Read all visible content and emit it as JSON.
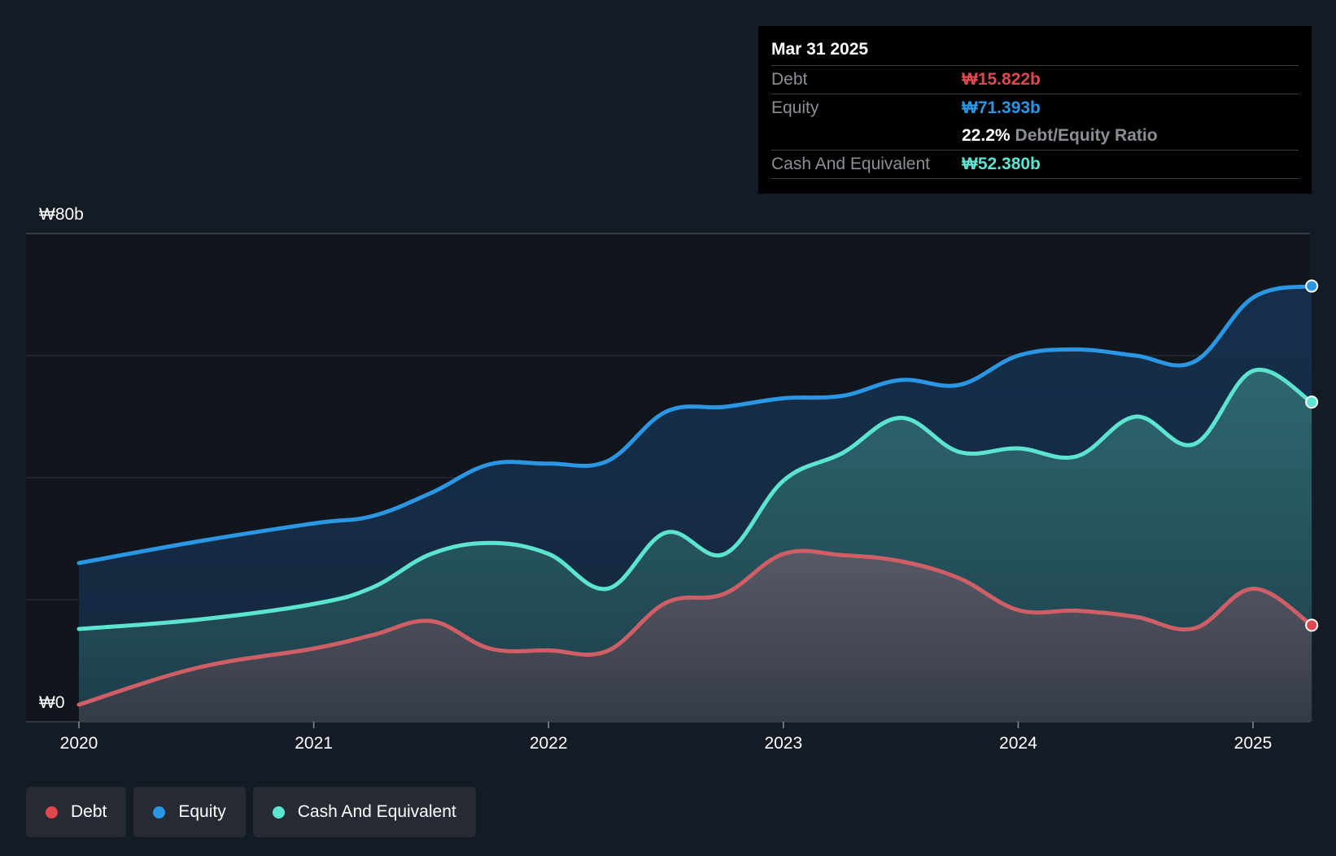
{
  "chart_data": {
    "type": "area",
    "title": "",
    "xlabel": "",
    "ylabel": "",
    "ylim": [
      0,
      80
    ],
    "y_tick_labels": {
      "top": "₩80b",
      "bottom": "₩0"
    },
    "x_tick_labels": [
      "2020",
      "2021",
      "2022",
      "2023",
      "2024",
      "2025"
    ],
    "x_tick_values": [
      2020,
      2021,
      2022,
      2023,
      2024,
      2025
    ],
    "xlim": [
      2019.78,
      2025.25
    ],
    "grid": true,
    "series": [
      {
        "name": "Equity",
        "color": "#2b96e3",
        "x": [
          2020.0,
          2020.5,
          2021.0,
          2021.25,
          2021.5,
          2021.75,
          2022.0,
          2022.25,
          2022.5,
          2022.75,
          2023.0,
          2023.25,
          2023.5,
          2023.75,
          2024.0,
          2024.25,
          2024.5,
          2024.75,
          2025.0,
          2025.25
        ],
        "values": [
          26.0,
          29.5,
          32.5,
          33.7,
          37.5,
          42.2,
          42.3,
          42.7,
          50.8,
          51.6,
          53.0,
          53.4,
          56.0,
          55.2,
          60.0,
          61.0,
          60.0,
          59.0,
          69.5,
          71.393
        ]
      },
      {
        "name": "Cash And Equivalent",
        "color": "#5de4d0",
        "x": [
          2020.0,
          2020.5,
          2021.0,
          2021.25,
          2021.5,
          2021.75,
          2022.0,
          2022.25,
          2022.5,
          2022.75,
          2023.0,
          2023.25,
          2023.5,
          2023.75,
          2024.0,
          2024.25,
          2024.5,
          2024.75,
          2025.0,
          2025.25
        ],
        "values": [
          15.2,
          16.7,
          19.3,
          22.0,
          27.5,
          29.3,
          27.5,
          21.8,
          31.0,
          27.5,
          39.5,
          44.0,
          49.8,
          44.2,
          44.8,
          43.5,
          50.0,
          45.5,
          57.5,
          52.38
        ]
      },
      {
        "name": "Debt",
        "color": "#e0474e",
        "x": [
          2020.0,
          2020.5,
          2021.0,
          2021.25,
          2021.5,
          2021.75,
          2022.0,
          2022.25,
          2022.5,
          2022.75,
          2023.0,
          2023.25,
          2023.5,
          2023.75,
          2024.0,
          2024.25,
          2024.5,
          2024.75,
          2025.0,
          2025.25
        ],
        "values": [
          2.8,
          8.8,
          12.0,
          14.2,
          16.5,
          12.0,
          11.7,
          11.6,
          19.5,
          21.0,
          27.5,
          27.3,
          26.3,
          23.5,
          18.3,
          18.2,
          17.2,
          15.3,
          21.8,
          15.822
        ]
      }
    ],
    "tooltip": {
      "date": "Mar 31 2025",
      "debt_label": "Debt",
      "debt_value": "₩15.822b",
      "equity_label": "Equity",
      "equity_value": "₩71.393b",
      "ratio_value": "22.2%",
      "ratio_label": "Debt/Equity Ratio",
      "cash_label": "Cash And Equivalent",
      "cash_value": "₩52.380b"
    },
    "legend": [
      {
        "label": "Debt",
        "color": "#e0474e"
      },
      {
        "label": "Equity",
        "color": "#2b96e3"
      },
      {
        "label": "Cash And Equivalent",
        "color": "#5de4d0"
      }
    ]
  }
}
